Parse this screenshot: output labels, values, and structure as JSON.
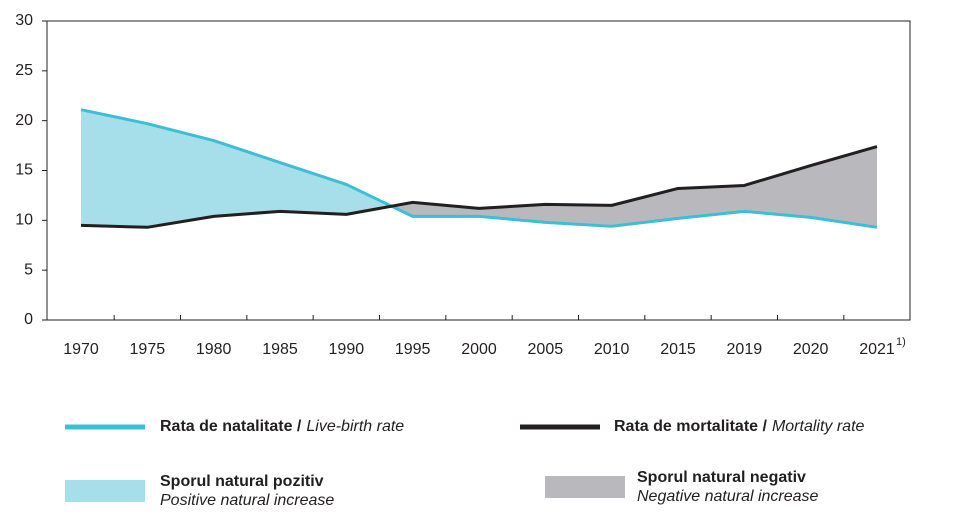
{
  "chart_data": {
    "type": "line",
    "categories": [
      "1970",
      "1975",
      "1980",
      "1985",
      "1990",
      "1995",
      "2000",
      "2005",
      "2010",
      "2015",
      "2019",
      "2020",
      "2021"
    ],
    "category_footnote": "1)",
    "series": [
      {
        "name": "Rata de natalitate /",
        "name_en": "Live-birth rate",
        "color": "#3bbfd6",
        "values": [
          21.1,
          19.7,
          18.0,
          15.8,
          13.6,
          10.4,
          10.4,
          9.8,
          9.4,
          10.2,
          10.9,
          10.3,
          9.3
        ]
      },
      {
        "name": "Rata de mortalitate /",
        "name_en": "Mortality rate",
        "color": "#231f20",
        "values": [
          9.5,
          9.3,
          10.4,
          10.9,
          10.6,
          11.8,
          11.2,
          11.6,
          11.5,
          13.2,
          13.5,
          15.5,
          17.4
        ]
      }
    ],
    "areas": [
      {
        "name": "Sporul natural pozitiv",
        "name_en": "Positive natural increase",
        "color": "#a6dfea"
      },
      {
        "name": "Sporul natural negativ",
        "name_en": "Negative natural increase",
        "color": "#b9b9bd"
      }
    ],
    "ylim": [
      0,
      30
    ],
    "yticks": [
      0,
      5,
      10,
      15,
      20,
      25,
      30
    ]
  }
}
